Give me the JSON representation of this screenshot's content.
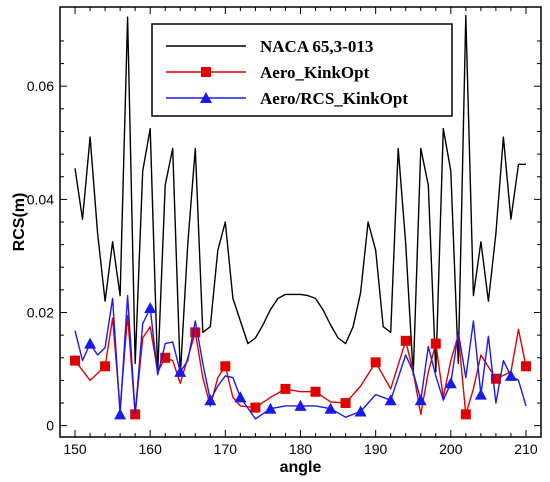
{
  "chart_data": {
    "type": "line",
    "xlabel": "angle",
    "ylabel": "RCS(m)",
    "xlim": [
      148,
      212
    ],
    "ylim": [
      -0.002,
      0.074
    ],
    "xticks": [
      150,
      160,
      170,
      180,
      190,
      200,
      210
    ],
    "xtick_labels": [
      "150",
      "160",
      "170",
      "180",
      "190",
      "200",
      "210"
    ],
    "yticks": [
      0,
      0.02,
      0.04,
      0.06
    ],
    "ytick_labels": [
      "0",
      "0.02",
      "0.04",
      "0.06"
    ],
    "grid": false,
    "legend_position": "top-right",
    "series": [
      {
        "name": "NACA 65,3-013",
        "color": "#000000",
        "marker": "none",
        "x": [
          150,
          151,
          152,
          153,
          154,
          155,
          156,
          157,
          158,
          159,
          160,
          161,
          162,
          163,
          164,
          165,
          166,
          167,
          168,
          169,
          170,
          171,
          172,
          173,
          174,
          175,
          176,
          177,
          178,
          179,
          180,
          181,
          182,
          183,
          184,
          185,
          186,
          187,
          188,
          189,
          190,
          191,
          192,
          193,
          194,
          195,
          196,
          197,
          198,
          199,
          200,
          201,
          202,
          203,
          204,
          205,
          206,
          207,
          208,
          209,
          210
        ],
        "y": [
          0.0455,
          0.0365,
          0.051,
          0.034,
          0.022,
          0.0325,
          0.023,
          0.0722,
          0.011,
          0.045,
          0.0525,
          0.0095,
          0.0425,
          0.049,
          0.009,
          0.0322,
          0.049,
          0.0165,
          0.0175,
          0.031,
          0.036,
          0.0225,
          0.0185,
          0.0145,
          0.0155,
          0.0178,
          0.0205,
          0.0225,
          0.0232,
          0.0232,
          0.0232,
          0.023,
          0.0225,
          0.0205,
          0.0178,
          0.0155,
          0.0145,
          0.0175,
          0.0235,
          0.036,
          0.031,
          0.0175,
          0.0165,
          0.049,
          0.0322,
          0.009,
          0.049,
          0.0425,
          0.0095,
          0.0525,
          0.045,
          0.011,
          0.0725,
          0.023,
          0.0325,
          0.022,
          0.034,
          0.051,
          0.0365,
          0.0462,
          0.0462
        ]
      },
      {
        "name": "Aero_KinkOpt",
        "color": "#e00000",
        "marker": "square",
        "x": [
          150,
          152,
          154,
          155,
          156,
          157,
          158,
          159,
          160,
          161,
          162,
          163,
          164,
          165,
          166,
          167,
          168,
          169,
          170,
          171,
          172,
          174,
          176,
          178,
          180,
          182,
          184,
          186,
          188,
          190,
          192,
          194,
          195,
          196,
          197,
          198,
          199,
          200,
          201,
          202,
          203,
          204,
          206,
          208,
          209,
          210
        ],
        "y": [
          0.0115,
          0.008,
          0.0105,
          0.019,
          0.003,
          0.0195,
          0.002,
          0.0155,
          0.0175,
          0.0095,
          0.012,
          0.0115,
          0.0075,
          0.012,
          0.0165,
          0.0085,
          0.0035,
          0.0085,
          0.0105,
          0.005,
          0.0035,
          0.0032,
          0.005,
          0.0065,
          0.006,
          0.006,
          0.0042,
          0.004,
          0.007,
          0.0112,
          0.0065,
          0.015,
          0.0095,
          0.002,
          0.0095,
          0.0145,
          0.005,
          0.0115,
          0.016,
          0.002,
          0.0065,
          0.0125,
          0.0083,
          0.0095,
          0.017,
          0.0105
        ]
      },
      {
        "name": "Aero/RCS_KinkOpt",
        "color": "#1a1aee",
        "marker": "triangle",
        "x": [
          150,
          151,
          152,
          153,
          154,
          155,
          156,
          157,
          158,
          159,
          160,
          161,
          162,
          163,
          164,
          165,
          166,
          167,
          168,
          169,
          170,
          171,
          172,
          174,
          176,
          178,
          180,
          182,
          184,
          186,
          188,
          190,
          192,
          194,
          195,
          196,
          197,
          198,
          199,
          200,
          201,
          202,
          203,
          204,
          205,
          206,
          207,
          208,
          209,
          210
        ],
        "y": [
          0.0168,
          0.0115,
          0.0145,
          0.0125,
          0.0138,
          0.0225,
          0.002,
          0.023,
          0.002,
          0.018,
          0.0208,
          0.009,
          0.0145,
          0.0148,
          0.0095,
          0.0115,
          0.0185,
          0.011,
          0.0045,
          0.007,
          0.0088,
          0.0085,
          0.005,
          0.0012,
          0.003,
          0.0035,
          0.0035,
          0.0035,
          0.003,
          0.0015,
          0.0025,
          0.0055,
          0.0045,
          0.0125,
          0.0095,
          0.0045,
          0.014,
          0.0088,
          0.0045,
          0.0075,
          0.0165,
          0.0085,
          0.0185,
          0.0055,
          0.0158,
          0.004,
          0.0115,
          0.0088,
          0.008,
          0.0035
        ]
      }
    ]
  }
}
